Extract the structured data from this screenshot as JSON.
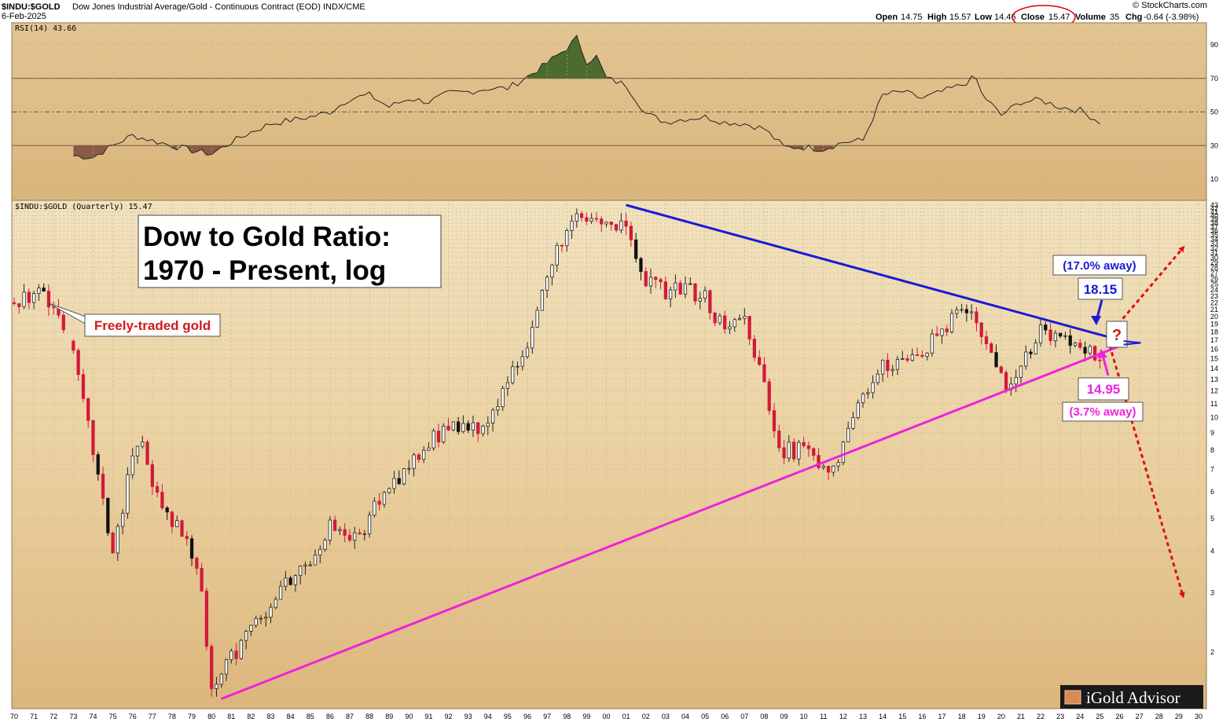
{
  "header": {
    "symbol": "$INDU:$GOLD",
    "description": "Dow Jones Industrial Average/Gold - Continuous Contract (EOD) INDX/CME",
    "date": "6-Feb-2025",
    "credit": "© StockCharts.com",
    "ohlc": {
      "open_label": "Open",
      "open": "14.75",
      "high_label": "High",
      "high": "15.57",
      "low_label": "Low",
      "low": "14.46",
      "close_label": "Close",
      "close": "15.47",
      "volume_label": "Volume",
      "volume": "35",
      "chg_label": "Chg",
      "chg": "-0.64 (-3.98%)"
    }
  },
  "rsi_label": "RSI(14) 43.66",
  "main_label": "$INDU:$GOLD (Quarterly) 15.47",
  "title_box": {
    "line1": "Dow to Gold Ratio:",
    "line2": "1970 - Present, log"
  },
  "annotations": {
    "freely_traded": "Freely-traded gold",
    "upper_away": "(17.0% away)",
    "upper_value": "18.15",
    "lower_value": "14.95",
    "lower_away": "(3.7% away)",
    "question": "?"
  },
  "watermark": "iGold Advisor",
  "colors": {
    "up_candle": "#ffffff",
    "down_candle": "#d11a3a",
    "black_candle": "#111111",
    "resistance_line": "#1a1ad6",
    "support_line": "#ee22dd",
    "projection_arrows": "#dd1111",
    "rsi_overbought_fill": "#4e6b2e",
    "rsi_oversold_fill": "#8b5a46",
    "background_top": "#efdcb5",
    "background_bottom": "#ddb77c"
  },
  "chart_data": [
    {
      "type": "line",
      "name": "RSI(14)",
      "ylim": [
        0,
        100
      ],
      "y_ticks": [
        10,
        30,
        50,
        70,
        90
      ],
      "reference_lines": [
        30,
        50,
        70
      ],
      "x": [
        1973,
        1974,
        1975,
        1976,
        1977,
        1978,
        1979,
        1980,
        1981,
        1982,
        1983,
        1984,
        1985,
        1986,
        1987,
        1988,
        1989,
        1990,
        1991,
        1992,
        1993,
        1994,
        1995,
        1996,
        1997,
        1998,
        1998.5,
        1999,
        1999.5,
        2000,
        2001,
        2002,
        2003,
        2004,
        2005,
        2006,
        2007,
        2008,
        2009,
        2010,
        2011,
        2012,
        2013,
        2014,
        2015,
        2016,
        2017,
        2018,
        2018.7,
        2019,
        2020,
        2021,
        2022,
        2023,
        2024,
        2025
      ],
      "y": [
        24,
        23,
        30,
        36,
        33,
        30,
        27,
        25,
        32,
        38,
        43,
        45,
        47,
        50,
        58,
        60,
        53,
        58,
        56,
        61,
        62,
        64,
        64,
        71,
        79,
        88,
        94,
        80,
        83,
        70,
        66,
        49,
        44,
        46,
        47,
        44,
        43,
        40,
        29,
        29,
        28,
        32,
        33,
        60,
        62,
        58,
        62,
        66,
        71,
        61,
        48,
        56,
        57,
        53,
        51,
        44
      ]
    },
    {
      "type": "candlestick",
      "name": "$INDU:$GOLD (Quarterly)",
      "scale": "log",
      "ylim": [
        1.4,
        43
      ],
      "y_ticks": [
        2,
        3,
        4,
        5,
        6,
        7,
        8,
        9,
        10,
        11,
        12,
        13,
        14,
        15,
        16,
        17,
        18,
        19,
        20,
        21,
        22,
        23,
        24,
        25,
        26,
        27,
        28,
        29,
        30,
        31,
        32,
        33,
        34,
        35,
        36,
        37,
        38,
        39,
        40,
        41,
        42,
        43
      ],
      "xlim": [
        1970,
        2030
      ],
      "x_ticks": [
        "70",
        "71",
        "72",
        "73",
        "74",
        "75",
        "76",
        "77",
        "78",
        "79",
        "80",
        "81",
        "82",
        "83",
        "84",
        "85",
        "86",
        "87",
        "88",
        "89",
        "90",
        "91",
        "92",
        "93",
        "94",
        "95",
        "96",
        "97",
        "98",
        "99",
        "00",
        "01",
        "02",
        "03",
        "04",
        "05",
        "06",
        "07",
        "08",
        "09",
        "10",
        "11",
        "12",
        "13",
        "14",
        "15",
        "16",
        "17",
        "18",
        "19",
        "20",
        "21",
        "22",
        "23",
        "24",
        "25",
        "26",
        "27",
        "28",
        "29",
        "30"
      ],
      "anchors": {
        "x": [
          1970,
          1971.5,
          1972.5,
          1973,
          1974,
          1974.5,
          1975,
          1976,
          1976.5,
          1977,
          1978,
          1979,
          1979.5,
          1980,
          1981,
          1982,
          1983,
          1984,
          1985,
          1986,
          1987,
          1988,
          1989,
          1990,
          1991,
          1992,
          1993,
          1994,
          1995,
          1996,
          1997,
          1998,
          1999,
          2000,
          2001,
          2002,
          2003,
          2004,
          2005,
          2006,
          2007,
          2008,
          2008.5,
          2009,
          2010,
          2011,
          2011.5,
          2012,
          2013,
          2014,
          2015,
          2016,
          2017,
          2018,
          2018.7,
          2019,
          2020,
          2020.5,
          2021,
          2022,
          2023,
          2024,
          2025
        ],
        "y": [
          22,
          24,
          19,
          15,
          8,
          5.5,
          4,
          7.5,
          8.5,
          6.5,
          5,
          4,
          3.1,
          1.5,
          1.9,
          2.4,
          2.8,
          3.3,
          3.8,
          4.8,
          4.2,
          5,
          6.5,
          7,
          8.5,
          9.5,
          9,
          9.5,
          13,
          17,
          26,
          38,
          40,
          38,
          36,
          25,
          24,
          24,
          23,
          18,
          19,
          13,
          9,
          8,
          8,
          7,
          6.8,
          8,
          12,
          14,
          15,
          16,
          18,
          21,
          20,
          18,
          13,
          12,
          15,
          18,
          17,
          16,
          15.47
        ]
      }
    }
  ],
  "trendlines": {
    "resistance": {
      "from": [
        2001,
        43
      ],
      "to": [
        2026.2,
        16.9
      ]
    },
    "support": {
      "from": [
        1980.5,
        1.45
      ],
      "to": [
        2026.2,
        16.5
      ]
    },
    "projection_up": {
      "from": [
        2025.7,
        18.3
      ],
      "to": [
        2029.2,
        32
      ]
    },
    "projection_down": {
      "from": [
        2025.5,
        16.4
      ],
      "to": [
        2029.2,
        2.95
      ]
    }
  }
}
